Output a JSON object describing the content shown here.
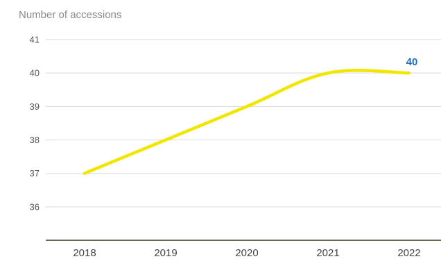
{
  "chart_data": {
    "type": "line",
    "ylabel": "Number of accessions",
    "xlabel": "",
    "title": "",
    "x": [
      "2018",
      "2019",
      "2020",
      "2021",
      "2022"
    ],
    "series": [
      {
        "values": [
          37,
          38,
          39,
          40,
          40
        ],
        "color": "#f2e600"
      }
    ],
    "ylim": [
      35,
      41
    ],
    "yticks": [
      36,
      37,
      38,
      39,
      40,
      41
    ],
    "grid": true,
    "annotations": [
      {
        "x": "2022",
        "value": 40,
        "text": "40",
        "color": "#1f6fbf"
      }
    ]
  }
}
